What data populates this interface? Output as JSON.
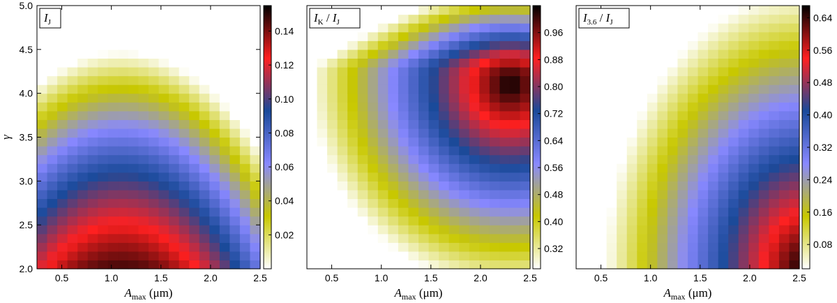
{
  "chart_data": [
    {
      "type": "heatmap",
      "label": {
        "main": "I",
        "sub": "J",
        "mid": "",
        "main2": "",
        "sub2": ""
      },
      "xlabel": {
        "main": "A",
        "sub": "max",
        "rest": " (μm)"
      },
      "ylabel": "γ",
      "xlim": [
        0.25,
        2.5
      ],
      "ylim": [
        2.0,
        5.0
      ],
      "x_ticks": [
        "0.5",
        "1.0",
        "1.5",
        "2.0",
        "2.5"
      ],
      "y_ticks": [
        "2.0",
        "2.5",
        "3.0",
        "3.5",
        "4.0",
        "4.5",
        "5.0"
      ],
      "colorbar": {
        "range": [
          0.0,
          0.155
        ],
        "ticks": [
          "0.02",
          "0.04",
          "0.06",
          "0.08",
          "0.10",
          "0.12",
          "0.14"
        ],
        "tick_values": [
          0.02,
          0.04,
          0.06,
          0.08,
          0.1,
          0.12,
          0.14
        ]
      },
      "colormap": [
        "#ffffff",
        "#c8c800",
        "#8888ff",
        "#1a4a9a",
        "#ff2020",
        "#000000"
      ],
      "description_values": "peak ~0.15 near A_max=1.1, γ=2.0; declining to ~0 at γ=5"
    },
    {
      "type": "heatmap",
      "label": {
        "main": "I",
        "sub": "K",
        "mid": " / ",
        "main2": "I",
        "sub2": "J"
      },
      "xlabel": {
        "main": "A",
        "sub": "max",
        "rest": " (μm)"
      },
      "ylabel": "",
      "xlim": [
        0.25,
        2.5
      ],
      "ylim": [
        2.0,
        5.0
      ],
      "x_ticks": [
        "0.5",
        "1.0",
        "1.5",
        "2.0",
        "2.5"
      ],
      "y_ticks": [],
      "colorbar": {
        "range": [
          0.26,
          1.04
        ],
        "ticks": [
          "0.32",
          "0.40",
          "0.48",
          "0.56",
          "0.64",
          "0.72",
          "0.80",
          "0.88",
          "0.96"
        ],
        "tick_values": [
          0.32,
          0.4,
          0.48,
          0.56,
          0.64,
          0.72,
          0.8,
          0.88,
          0.96
        ]
      },
      "colormap": [
        "#ffffff",
        "#c8c800",
        "#8888ff",
        "#1a4a9a",
        "#ff2020",
        "#000000"
      ],
      "description_values": "max ~1.0 near A_max=2.2, γ=4.0"
    },
    {
      "type": "heatmap",
      "label": {
        "main": "I",
        "sub": "3.6",
        "mid": " / ",
        "main2": "I",
        "sub2": "J"
      },
      "xlabel": {
        "main": "A",
        "sub": "max",
        "rest": " (μm)"
      },
      "ylabel": "",
      "xlim": [
        0.25,
        2.5
      ],
      "ylim": [
        2.0,
        5.0
      ],
      "x_ticks": [
        "0.5",
        "1.0",
        "1.5",
        "2.0",
        "2.5"
      ],
      "y_ticks": [],
      "colorbar": {
        "range": [
          0.02,
          0.67
        ],
        "ticks": [
          "0.08",
          "0.16",
          "0.24",
          "0.32",
          "0.40",
          "0.48",
          "0.56",
          "0.64"
        ],
        "tick_values": [
          0.08,
          0.16,
          0.24,
          0.32,
          0.4,
          0.48,
          0.56,
          0.64
        ]
      },
      "colormap": [
        "#ffffff",
        "#c8c800",
        "#8888ff",
        "#1a4a9a",
        "#ff2020",
        "#000000"
      ],
      "description_values": "max ~0.66 near A_max=2.5, γ=2.0"
    }
  ]
}
